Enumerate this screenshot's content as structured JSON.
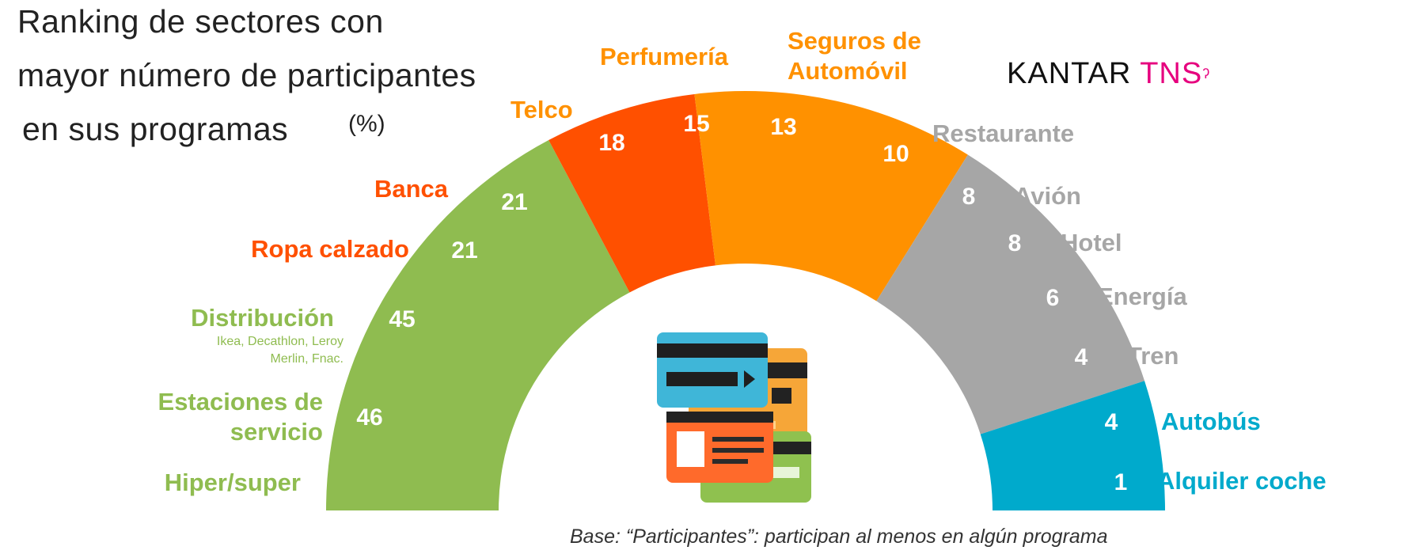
{
  "title": {
    "line1": "Ranking de sectores con",
    "line2": "mayor número de participantes",
    "line3": "en sus programas",
    "unit": "(%)"
  },
  "brand": {
    "part1": "KANTAR ",
    "part2": "TNS"
  },
  "footnote": "Base: “Participantes”: participan al menos en algún programa",
  "colors": {
    "green": "#8fbc50",
    "red": "#ff5000",
    "orange": "#ff9100",
    "gray": "#a6a6a6",
    "blue": "#00aacc"
  },
  "chart_data": {
    "type": "semicircular-bar",
    "unit": "%",
    "categories": [
      {
        "label": "Hiper/super",
        "value": 46,
        "color": "green"
      },
      {
        "label": "Estaciones de servicio",
        "value": null,
        "color": "green"
      },
      {
        "label": "Distribución",
        "sublabel": "Ikea, Decathlon, Leroy Merlin, Fnac.",
        "value": 45,
        "color": "green"
      },
      {
        "label": "Ropa calzado",
        "value": 21,
        "color": "red"
      },
      {
        "label": "Banca",
        "value": 21,
        "color": "red"
      },
      {
        "label": "Telco",
        "value": 18,
        "color": "orange"
      },
      {
        "label": "Perfumería",
        "value": 15,
        "color": "orange"
      },
      {
        "label": "Seguros de Automóvil",
        "value": 13,
        "color": "orange"
      },
      {
        "label": "Restaurante",
        "value": 10,
        "color": "gray"
      },
      {
        "label": "Avión",
        "value": 8,
        "color": "gray"
      },
      {
        "label": "Hotel",
        "value": 8,
        "color": "gray"
      },
      {
        "label": "Energía",
        "value": 6,
        "color": "gray"
      },
      {
        "label": "Tren",
        "value": 4,
        "color": "gray"
      },
      {
        "label": "Autobús",
        "value": 4,
        "color": "blue"
      },
      {
        "label": "Alquiler coche",
        "value": 1,
        "color": "blue"
      }
    ]
  }
}
